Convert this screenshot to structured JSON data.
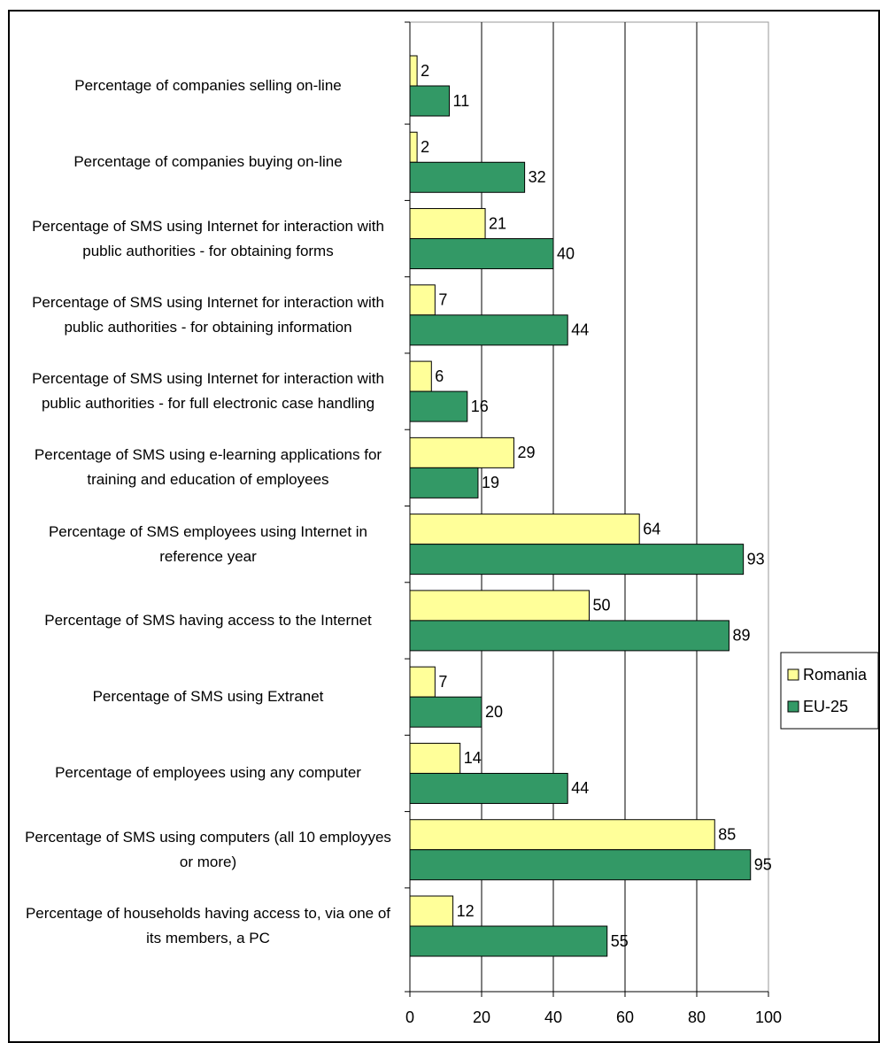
{
  "chart_data": {
    "type": "hbar",
    "categories": [
      "Percentage of companies selling on-line",
      "Percentage of companies buying on-line",
      "Percentage of SMS using Internet for interaction with public authorities - for obtaining forms",
      "Percentage of SMS using Internet for interaction with public authorities - for obtaining information",
      "Percentage of SMS using Internet for interaction with public authorities - for full electronic case handling",
      "Percentage of SMS using e-learning applications for training and education of employees",
      "Percentage of SMS employees using Internet  in reference year",
      "Percentage of SMS having access to the Internet",
      "Percentage of SMS using Extranet",
      "Percentage of employees using any computer",
      "Percentage of SMS using computers (all 10 employyes or more)",
      "Percentage of households having access to, via one of its members, a PC"
    ],
    "series": [
      {
        "name": "Romania",
        "color": "#ffff99",
        "values": [
          2,
          2,
          21,
          7,
          6,
          29,
          64,
          50,
          7,
          14,
          85,
          12
        ]
      },
      {
        "name": "EU-25",
        "color": "#339966",
        "values": [
          11,
          32,
          40,
          44,
          16,
          19,
          93,
          89,
          20,
          44,
          95,
          55
        ]
      }
    ],
    "xlim": [
      0,
      100
    ],
    "xticks": [
      0,
      20,
      40,
      60,
      80,
      100
    ],
    "grid": true,
    "legend": "right"
  }
}
